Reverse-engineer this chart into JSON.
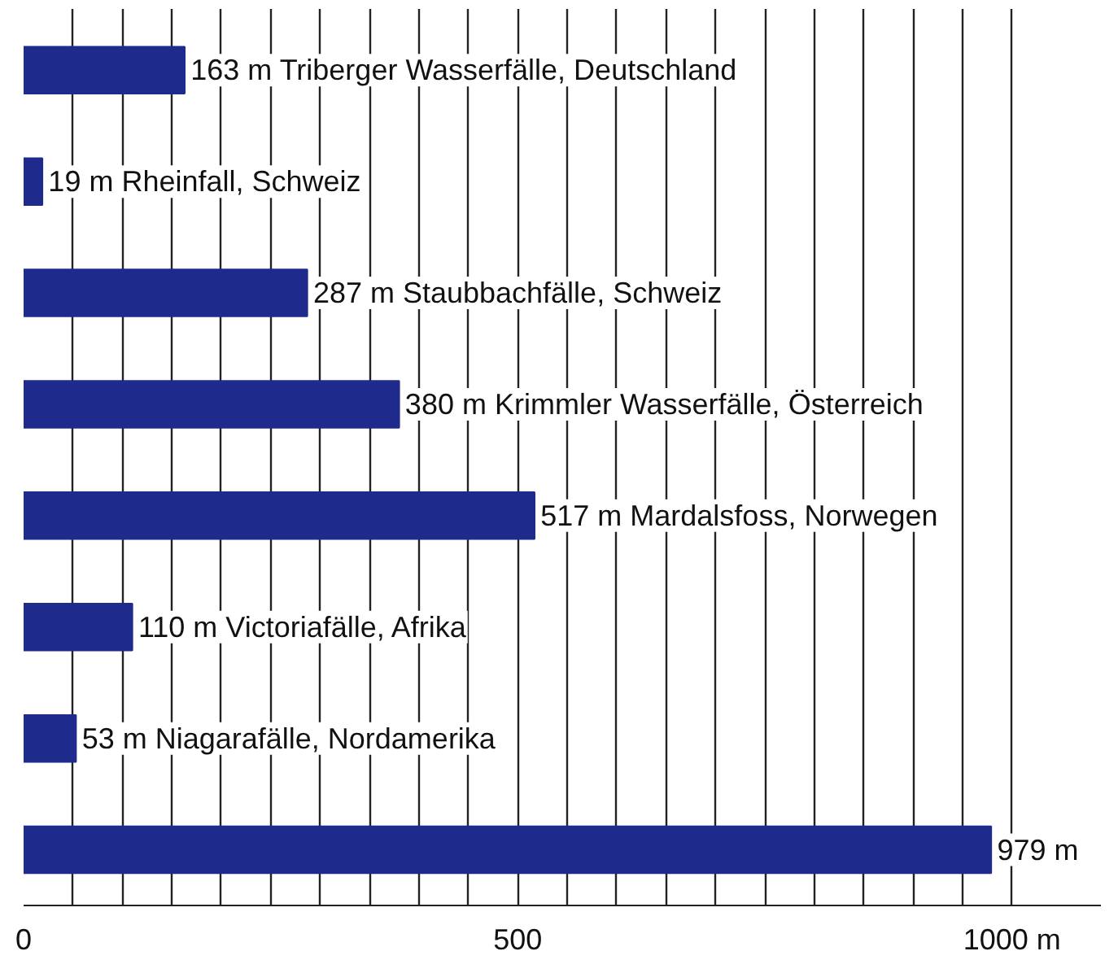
{
  "chart_data": {
    "type": "bar",
    "orientation": "horizontal",
    "categories": [
      null,
      null,
      null,
      null,
      null,
      null,
      null,
      null
    ],
    "values": [
      163,
      19,
      287,
      380,
      517,
      110,
      53,
      979
    ],
    "value_labels": [
      "163 m Triberger Wasserfälle, Deutschland",
      "19 m Rheinfall, Schweiz",
      "287 m Staubbachfälle, Schweiz",
      "380 m Krimmler Wasserfälle, Österreich",
      "517 m Mardalsfoss, Norwegen",
      "110 m Victoriafälle, Afrika",
      "53 m Niagarafälle, Nordamerika",
      "979 m"
    ],
    "color": "#1f2b8c",
    "xlim": [
      0,
      1090
    ],
    "xticks": [
      0,
      {
        "value": 50,
        "label": null
      },
      {
        "value": 100,
        "label": null
      },
      {
        "value": 150,
        "label": null
      },
      {
        "value": 200,
        "label": null
      },
      {
        "value": 250,
        "label": null
      },
      {
        "value": 300,
        "label": null
      },
      {
        "value": 350,
        "label": null
      },
      {
        "value": 400,
        "label": null
      },
      {
        "value": 450,
        "label": null
      },
      500,
      {
        "value": 550,
        "label": null
      },
      {
        "value": 600,
        "label": null
      },
      {
        "value": 650,
        "label": null
      },
      {
        "value": 700,
        "label": null
      },
      {
        "value": 750,
        "label": null
      },
      {
        "value": 800,
        "label": null
      },
      {
        "value": 850,
        "label": null
      },
      {
        "value": 900,
        "label": null
      },
      {
        "value": 950,
        "label": null
      },
      {
        "value": 1000,
        "label": "1000 m"
      }
    ],
    "grid": "x"
  }
}
